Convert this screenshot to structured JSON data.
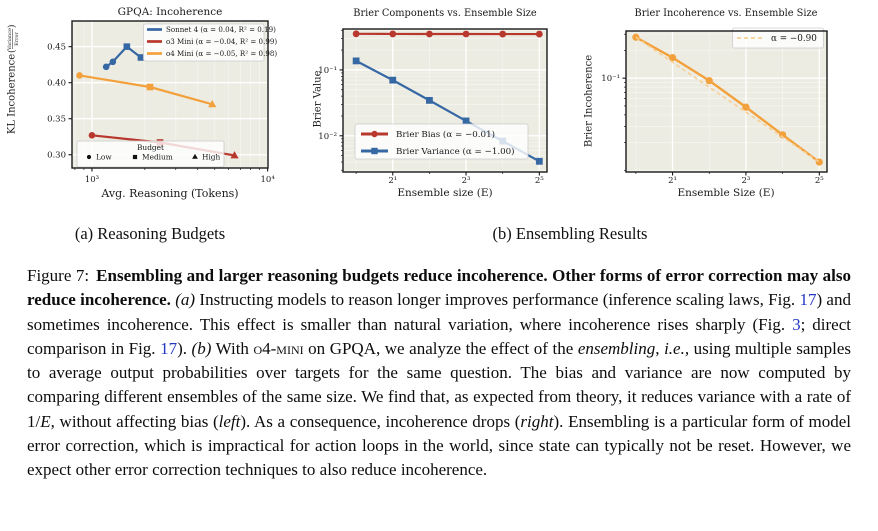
{
  "colors": {
    "link_blue": "#2336C4",
    "sonnet_blue": "#3668A4",
    "o3_red": "#B8382E",
    "o4_orange": "#F2A13C",
    "fit_dash_orange": "#F8CE93",
    "plot_background": "#ECECE3",
    "spine": "#1a1a1a"
  },
  "subcaptions": {
    "a": "(a) Reasoning Budgets",
    "b": "(b) Ensembling Results"
  },
  "caption": {
    "segments": [
      {
        "t": "Figure 7:",
        "s": "figlabel"
      },
      {
        "t": "Ensembling and larger reasoning budgets reduce incoherence. Other forms of error correction may also reduce incoherence. ",
        "s": "bold"
      },
      {
        "t": "(a)",
        "s": "italic"
      },
      {
        "t": " Instructing models to reason longer improves performance (inference scaling laws, Fig. ",
        "s": "plain"
      },
      {
        "t": "17",
        "s": "link"
      },
      {
        "t": ") and sometimes incoherence. This effect is smaller than natural variation, where incoherence rises sharply (Fig. ",
        "s": "plain"
      },
      {
        "t": "3",
        "s": "link"
      },
      {
        "t": "; direct comparison in Fig. ",
        "s": "plain"
      },
      {
        "t": "17",
        "s": "link"
      },
      {
        "t": "). ",
        "s": "plain"
      },
      {
        "t": "(b)",
        "s": "italic"
      },
      {
        "t": " With ",
        "s": "plain"
      },
      {
        "t": "o4-mini",
        "s": "smallcaps"
      },
      {
        "t": " on GPQA, we analyze the effect of the ",
        "s": "plain"
      },
      {
        "t": "ensembling",
        "s": "italic"
      },
      {
        "t": ", ",
        "s": "plain"
      },
      {
        "t": "i.e.,",
        "s": "italic"
      },
      {
        "t": " using multiple samples to average output probabilities over targets for the same question. The bias and variance are now computed by comparing different ensembles of the same size. We find that, as expected from theory, it reduces variance with a rate of 1/",
        "s": "plain"
      },
      {
        "t": "E",
        "s": "italic"
      },
      {
        "t": ", without affecting bias (",
        "s": "plain"
      },
      {
        "t": "left",
        "s": "italic"
      },
      {
        "t": "). As a consequence, incoherence drops (",
        "s": "plain"
      },
      {
        "t": "right",
        "s": "italic"
      },
      {
        "t": "). Ensembling is a particular form of model error correction, which is impractical for action loops in the world, since state can typically not be reset. However, we expect other error correction techniques to also reduce incoherence.",
        "s": "plain"
      }
    ]
  },
  "chart_data": [
    {
      "id": "gpqa",
      "type": "line",
      "title": "GPQA: Incoherence",
      "xlabel": "Avg. Reasoning (Tokens)",
      "ylabel": "KL Incoherence",
      "ylabel_fraction": {
        "numerator": "Variance",
        "denominator": "Error"
      },
      "xscale": "log",
      "yscale": "linear",
      "xlim": [
        770,
        10050
      ],
      "ylim": [
        0.2816,
        0.4856
      ],
      "grid": true,
      "xticks": [
        {
          "v": 1000,
          "label": "10³"
        },
        {
          "v": 10000,
          "label": "10⁴"
        }
      ],
      "xminor": [
        800,
        900,
        2000,
        3000,
        4000,
        5000,
        6000,
        7000,
        8000,
        9000
      ],
      "yticks": [
        {
          "v": 0.3,
          "label": "0.30"
        },
        {
          "v": 0.35,
          "label": "0.35"
        },
        {
          "v": 0.4,
          "label": "0.40"
        },
        {
          "v": 0.45,
          "label": "0.45"
        }
      ],
      "legend_position": "upper right",
      "series": [
        {
          "name": "Sonnet 4 (α = 0.04, R² = 0.19)",
          "color": "#3668A4",
          "x": [
            1205,
            1315,
            1580,
            1900
          ],
          "y": [
            0.422,
            0.429,
            0.45,
            0.435
          ],
          "markers": [
            "circle",
            "circle",
            "square",
            "square"
          ]
        },
        {
          "name": "o3 Mini (α = −0.04, R² = 0.99)",
          "color": "#B8382E",
          "x": [
            1000,
            2440,
            6480
          ],
          "y": [
            0.327,
            0.317,
            0.299
          ],
          "markers": [
            "circle",
            "square",
            "triangle"
          ]
        },
        {
          "name": "o4 Mini (α = −0.05, R² = 0.98)",
          "color": "#F2A13C",
          "x": [
            850,
            2140,
            4840
          ],
          "y": [
            0.41,
            0.394,
            0.37
          ],
          "markers": [
            "circle",
            "square",
            "triangle"
          ]
        }
      ],
      "budget_legend": {
        "title": "Budget",
        "items": [
          {
            "label": "Low",
            "marker": "circle"
          },
          {
            "label": "Medium",
            "marker": "square"
          },
          {
            "label": "High",
            "marker": "triangle"
          }
        ]
      }
    },
    {
      "id": "components",
      "type": "line",
      "title": "Brier Components vs. Ensemble Size",
      "xlabel": "Ensemble size (E)",
      "ylabel": "Brier Value",
      "xscale": "log",
      "yscale": "log",
      "xlim": [
        0.78,
        37
      ],
      "ylim": [
        0.00282,
        0.418
      ],
      "grid": true,
      "xticks": [
        {
          "v": 2,
          "label": "2¹"
        },
        {
          "v": 8,
          "label": "2³"
        },
        {
          "v": 32,
          "label": "2⁵"
        }
      ],
      "xminor": [
        1,
        4,
        16
      ],
      "yticks": [
        {
          "v": 0.1,
          "label": "10⁻¹"
        },
        {
          "v": 0.01,
          "label": "10⁻²"
        }
      ],
      "legend_position": "lower left",
      "series": [
        {
          "name": "Brier Bias (α = −0.01)",
          "color": "#B8382E",
          "marker": "circle",
          "x": [
            1,
            2,
            4,
            8,
            16,
            32
          ],
          "y": [
            0.353,
            0.352,
            0.351,
            0.351,
            0.35,
            0.35
          ]
        },
        {
          "name": "Brier Variance (α = −1.00)",
          "color": "#3668A4",
          "marker": "square",
          "x": [
            1,
            2,
            4,
            8,
            16,
            32
          ],
          "y": [
            0.137,
            0.07,
            0.0345,
            0.0168,
            0.0083,
            0.0041
          ]
        }
      ]
    },
    {
      "id": "incoherence",
      "type": "line",
      "title": "Brier Incoherence vs. Ensemble Size",
      "xlabel": "Ensemble Size (E)",
      "ylabel": "Brier Incoherence",
      "xscale": "log",
      "yscale": "log",
      "xlim": [
        0.83,
        37
      ],
      "ylim": [
        0.0096,
        0.325
      ],
      "grid": true,
      "xticks": [
        {
          "v": 2,
          "label": "2¹"
        },
        {
          "v": 8,
          "label": "2³"
        },
        {
          "v": 32,
          "label": "2⁵"
        }
      ],
      "xminor": [
        1,
        4,
        16
      ],
      "yticks": [
        {
          "v": 0.1,
          "label": "10⁻¹"
        }
      ],
      "legend_position": "upper right",
      "series": [
        {
          "name": "Brier Incoherence",
          "color": "#F2A13C",
          "marker": "circle",
          "x": [
            1,
            2,
            4,
            8,
            16,
            32
          ],
          "y": [
            0.278,
            0.167,
            0.094,
            0.0485,
            0.0243,
            0.0123
          ]
        }
      ],
      "fit_legend": {
        "label": "α = −0.90",
        "dash_color": "#F8CE93"
      }
    }
  ]
}
